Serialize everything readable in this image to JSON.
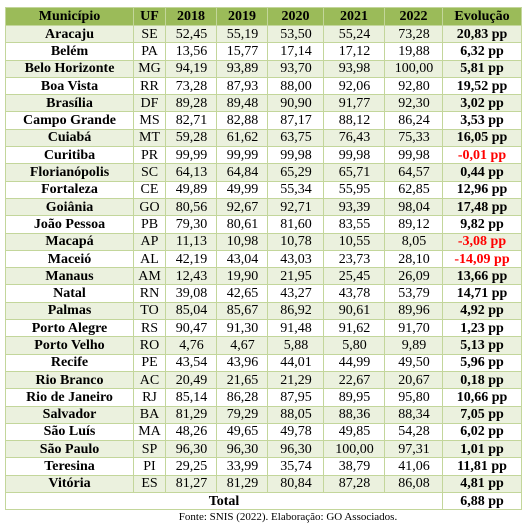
{
  "table": {
    "header": [
      "Município",
      "UF",
      "2018",
      "2019",
      "2020",
      "2021",
      "2022",
      "Evolução"
    ],
    "rows": [
      [
        "Aracaju",
        "SE",
        "52,45",
        "55,19",
        "53,50",
        "55,24",
        "73,28",
        "20,83 pp"
      ],
      [
        "Belém",
        "PA",
        "13,56",
        "15,77",
        "17,14",
        "17,12",
        "19,88",
        "6,32 pp"
      ],
      [
        "Belo Horizonte",
        "MG",
        "94,19",
        "93,89",
        "93,70",
        "93,98",
        "100,00",
        "5,81 pp"
      ],
      [
        "Boa Vista",
        "RR",
        "73,28",
        "87,93",
        "88,00",
        "92,06",
        "92,80",
        "19,52 pp"
      ],
      [
        "Brasília",
        "DF",
        "89,28",
        "89,48",
        "90,90",
        "91,77",
        "92,30",
        "3,02 pp"
      ],
      [
        "Campo Grande",
        "MS",
        "82,71",
        "82,88",
        "87,17",
        "88,12",
        "86,24",
        "3,53 pp"
      ],
      [
        "Cuiabá",
        "MT",
        "59,28",
        "61,62",
        "63,75",
        "76,43",
        "75,33",
        "16,05 pp"
      ],
      [
        "Curitiba",
        "PR",
        "99,99",
        "99,99",
        "99,98",
        "99,98",
        "99,98",
        "-0,01 pp"
      ],
      [
        "Florianópolis",
        "SC",
        "64,13",
        "64,84",
        "65,29",
        "65,71",
        "64,57",
        "0,44 pp"
      ],
      [
        "Fortaleza",
        "CE",
        "49,89",
        "49,99",
        "55,34",
        "55,95",
        "62,85",
        "12,96 pp"
      ],
      [
        "Goiânia",
        "GO",
        "80,56",
        "92,67",
        "92,71",
        "93,39",
        "98,04",
        "17,48 pp"
      ],
      [
        "João Pessoa",
        "PB",
        "79,30",
        "80,61",
        "81,60",
        "83,55",
        "89,12",
        "9,82 pp"
      ],
      [
        "Macapá",
        "AP",
        "11,13",
        "10,98",
        "10,78",
        "10,55",
        "8,05",
        "-3,08 pp"
      ],
      [
        "Maceió",
        "AL",
        "42,19",
        "43,04",
        "43,03",
        "23,73",
        "28,10",
        "-14,09 pp"
      ],
      [
        "Manaus",
        "AM",
        "12,43",
        "19,90",
        "21,95",
        "25,45",
        "26,09",
        "13,66 pp"
      ],
      [
        "Natal",
        "RN",
        "39,08",
        "42,65",
        "43,27",
        "43,78",
        "53,79",
        "14,71 pp"
      ],
      [
        "Palmas",
        "TO",
        "85,04",
        "85,67",
        "86,92",
        "90,61",
        "89,96",
        "4,92 pp"
      ],
      [
        "Porto Alegre",
        "RS",
        "90,47",
        "91,30",
        "91,48",
        "91,62",
        "91,70",
        "1,23 pp"
      ],
      [
        "Porto Velho",
        "RO",
        "4,76",
        "4,67",
        "5,88",
        "5,80",
        "9,89",
        "5,13 pp"
      ],
      [
        "Recife",
        "PE",
        "43,54",
        "43,96",
        "44,01",
        "44,99",
        "49,50",
        "5,96 pp"
      ],
      [
        "Rio Branco",
        "AC",
        "20,49",
        "21,65",
        "21,29",
        "22,67",
        "20,67",
        "0,18 pp"
      ],
      [
        "Rio de Janeiro",
        "RJ",
        "85,14",
        "86,28",
        "87,95",
        "89,95",
        "95,80",
        "10,66 pp"
      ],
      [
        "Salvador",
        "BA",
        "81,29",
        "79,29",
        "88,05",
        "88,36",
        "88,34",
        "7,05 pp"
      ],
      [
        "São Luís",
        "MA",
        "48,26",
        "49,65",
        "49,78",
        "49,85",
        "54,28",
        "6,02 pp"
      ],
      [
        "São Paulo",
        "SP",
        "96,30",
        "96,30",
        "96,30",
        "100,00",
        "97,31",
        "1,01 pp"
      ],
      [
        "Teresina",
        "PI",
        "29,25",
        "33,99",
        "35,74",
        "38,79",
        "41,06",
        "11,81 pp"
      ],
      [
        "Vitória",
        "ES",
        "81,27",
        "81,29",
        "80,84",
        "87,28",
        "86,08",
        "4,81 pp"
      ]
    ],
    "total": {
      "label": "Total",
      "value": "6,88 pp"
    },
    "source": "Fonte: SNIS (2022). Elaboração: GO Associados."
  }
}
